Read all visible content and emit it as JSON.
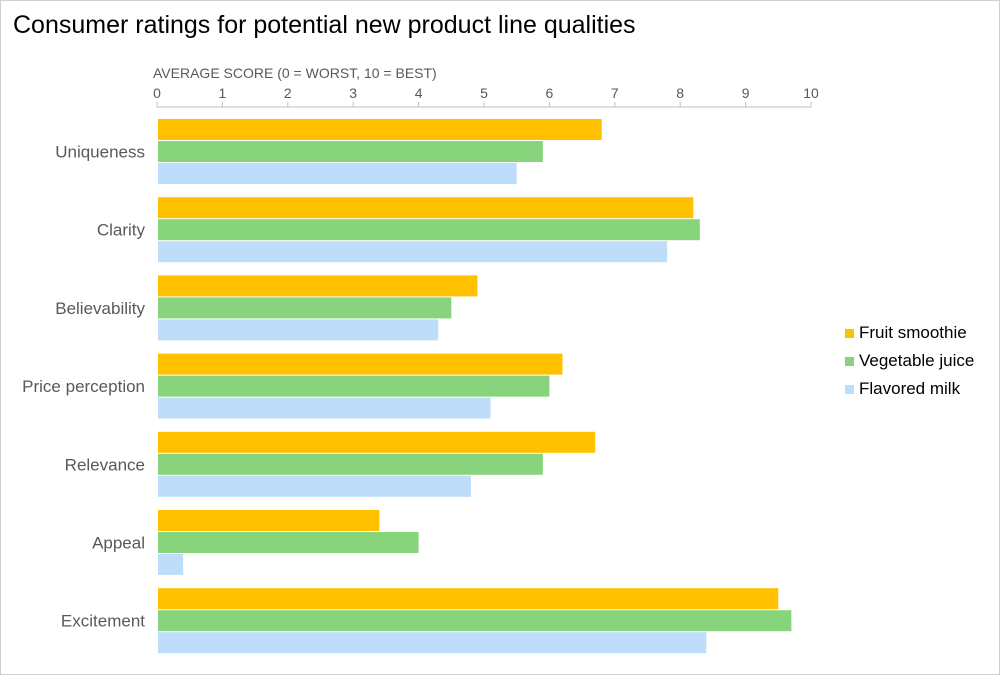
{
  "chart_data": {
    "type": "bar",
    "orientation": "horizontal",
    "title": "Consumer ratings for potential new product line qualities",
    "xlabel": "AVERAGE SCORE (0 = WORST, 10 = BEST)",
    "ylabel": "",
    "xlim": [
      0,
      10
    ],
    "x_ticks": [
      0,
      1,
      2,
      3,
      4,
      5,
      6,
      7,
      8,
      9,
      10
    ],
    "x_axis_position": "top",
    "grid": false,
    "legend_position": "right",
    "categories": [
      "Uniqueness",
      "Clarity",
      "Believability",
      "Price perception",
      "Relevance",
      "Appeal",
      "Excitement"
    ],
    "series": [
      {
        "name": "Fruit smoothie",
        "color": "#FFC000",
        "values": [
          6.8,
          8.2,
          4.9,
          6.2,
          6.7,
          3.4,
          9.5
        ]
      },
      {
        "name": "Vegetable juice",
        "color": "#88D47C",
        "values": [
          5.9,
          8.3,
          4.5,
          6.0,
          5.9,
          4.0,
          9.7
        ]
      },
      {
        "name": "Flavored milk",
        "color": "#BDDDFA",
        "values": [
          5.5,
          7.8,
          4.3,
          5.1,
          4.8,
          0.4,
          8.4
        ]
      }
    ],
    "colors": {
      "text": "#000000",
      "axis_text": "#595959",
      "axis_line": "#BFBFBF"
    }
  }
}
